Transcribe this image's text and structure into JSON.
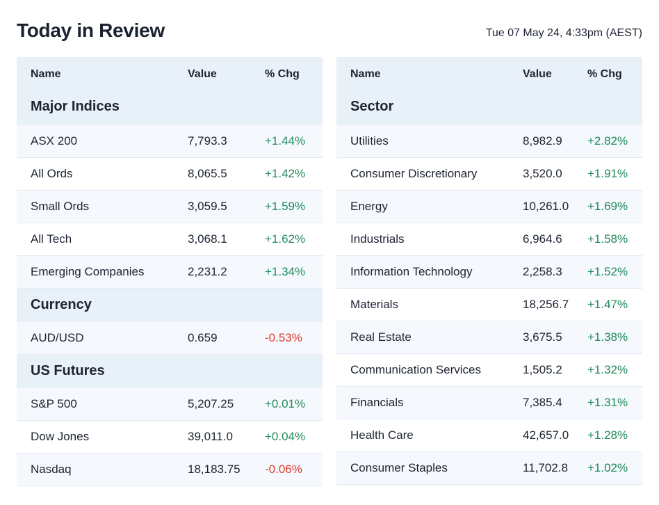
{
  "title": "Today in Review",
  "date": "Tue 07 May 24, 4:33pm (AEST)",
  "columns": {
    "name": "Name",
    "value": "Value",
    "chg": "% Chg"
  },
  "left": {
    "major": {
      "label": "Major Indices",
      "rows": [
        {
          "name": "ASX 200",
          "value": "7,793.3",
          "chg": "+1.44%"
        },
        {
          "name": "All Ords",
          "value": "8,065.5",
          "chg": "+1.42%"
        },
        {
          "name": "Small Ords",
          "value": "3,059.5",
          "chg": "+1.59%"
        },
        {
          "name": "All Tech",
          "value": "3,068.1",
          "chg": "+1.62%"
        },
        {
          "name": "Emerging Companies",
          "value": "2,231.2",
          "chg": "+1.34%"
        }
      ]
    },
    "currency": {
      "label": "Currency",
      "rows": [
        {
          "name": "AUD/USD",
          "value": "0.659",
          "chg": "-0.53%"
        }
      ]
    },
    "futures": {
      "label": "US Futures",
      "rows": [
        {
          "name": "S&P 500",
          "value": "5,207.25",
          "chg": "+0.01%"
        },
        {
          "name": "Dow Jones",
          "value": "39,011.0",
          "chg": "+0.04%"
        },
        {
          "name": "Nasdaq",
          "value": "18,183.75",
          "chg": "-0.06%"
        }
      ]
    }
  },
  "right": {
    "label": "Sector",
    "rows": [
      {
        "name": "Utilities",
        "value": "8,982.9",
        "chg": "+2.82%"
      },
      {
        "name": "Consumer Discretionary",
        "value": "3,520.0",
        "chg": "+1.91%"
      },
      {
        "name": "Energy",
        "value": "10,261.0",
        "chg": "+1.69%"
      },
      {
        "name": "Industrials",
        "value": "6,964.6",
        "chg": "+1.58%"
      },
      {
        "name": "Information Technology",
        "value": "2,258.3",
        "chg": "+1.52%"
      },
      {
        "name": "Materials",
        "value": "18,256.7",
        "chg": "+1.47%"
      },
      {
        "name": "Real Estate",
        "value": "3,675.5",
        "chg": "+1.38%"
      },
      {
        "name": "Communication Services",
        "value": "1,505.2",
        "chg": "+1.32%"
      },
      {
        "name": "Financials",
        "value": "7,385.4",
        "chg": "+1.31%"
      },
      {
        "name": "Health Care",
        "value": "42,657.0",
        "chg": "+1.28%"
      },
      {
        "name": "Consumer Staples",
        "value": "11,702.8",
        "chg": "+1.02%"
      }
    ]
  },
  "colors": {
    "up": "#1f8a5b",
    "down": "#e23b2e",
    "header_bg": "#e8f0f8"
  }
}
